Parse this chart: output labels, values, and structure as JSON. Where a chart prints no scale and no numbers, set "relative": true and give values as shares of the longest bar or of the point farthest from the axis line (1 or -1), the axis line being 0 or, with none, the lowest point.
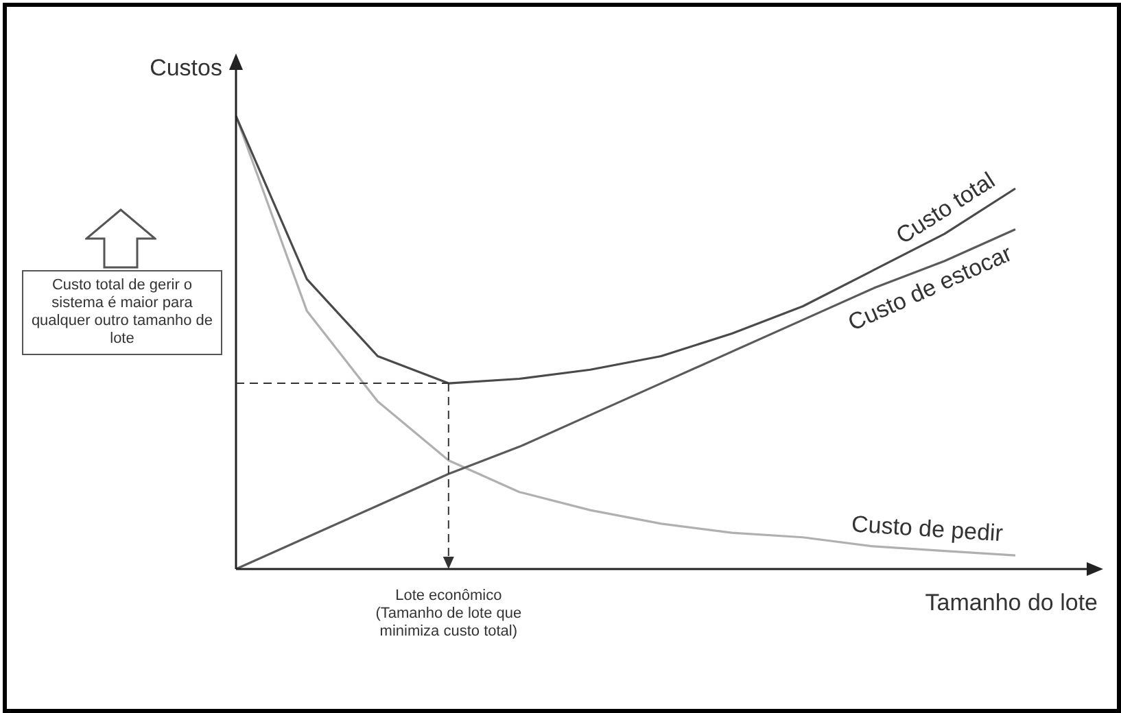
{
  "chart_data": {
    "type": "line",
    "relative": true,
    "legend": false,
    "marker": "none",
    "xlabel": "Tamanho do lote",
    "ylabel": "Custos",
    "categories": [
      null,
      null,
      null,
      null,
      null,
      null,
      null,
      null,
      null,
      null,
      null,
      null
    ],
    "series": [
      {
        "name": "Custo total",
        "color": "#4a4a4a",
        "values": [
          1,
          0.64,
          0.47,
          0.41,
          0.42,
          0.44,
          0.47,
          0.52,
          0.58,
          0.66,
          0.74,
          0.84
        ]
      },
      {
        "name": "Custo de estocar",
        "color": "#5a5a5a",
        "values": [
          0,
          0.07,
          0.14,
          0.21,
          0.27,
          0.34,
          0.41,
          0.48,
          0.55,
          0.62,
          0.68,
          0.75
        ]
      },
      {
        "name": "Custo de pedir",
        "color": "#b0b0b0",
        "values": [
          1,
          0.57,
          0.37,
          0.24,
          0.17,
          0.13,
          0.1,
          0.08,
          0.07,
          0.05,
          0.04,
          0.03
        ]
      }
    ],
    "ref_lines": [
      {
        "axis": "y",
        "value": 0.41,
        "line_style": "dashed",
        "color": "#333333"
      }
    ],
    "annotations": [
      "Custo total de gerir o sistema é maior para qualquer outro tamanho de lote",
      "Lote econômico (Tamanho de lote que minimiza custo total)"
    ]
  }
}
